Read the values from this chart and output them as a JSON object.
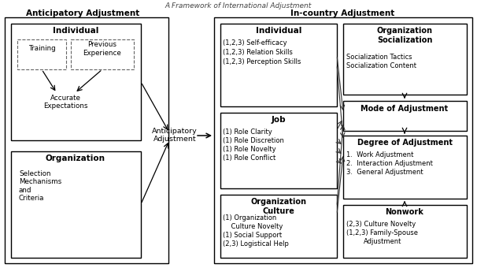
{
  "title": "A Framework of International Adjustment",
  "left_header": "Anticipatory Adjustment",
  "right_header": "In-country Adjustment",
  "bg_color": "#ffffff",
  "text_color": "#000000",
  "figsize": [
    6.06,
    3.4
  ],
  "dpi": 100
}
